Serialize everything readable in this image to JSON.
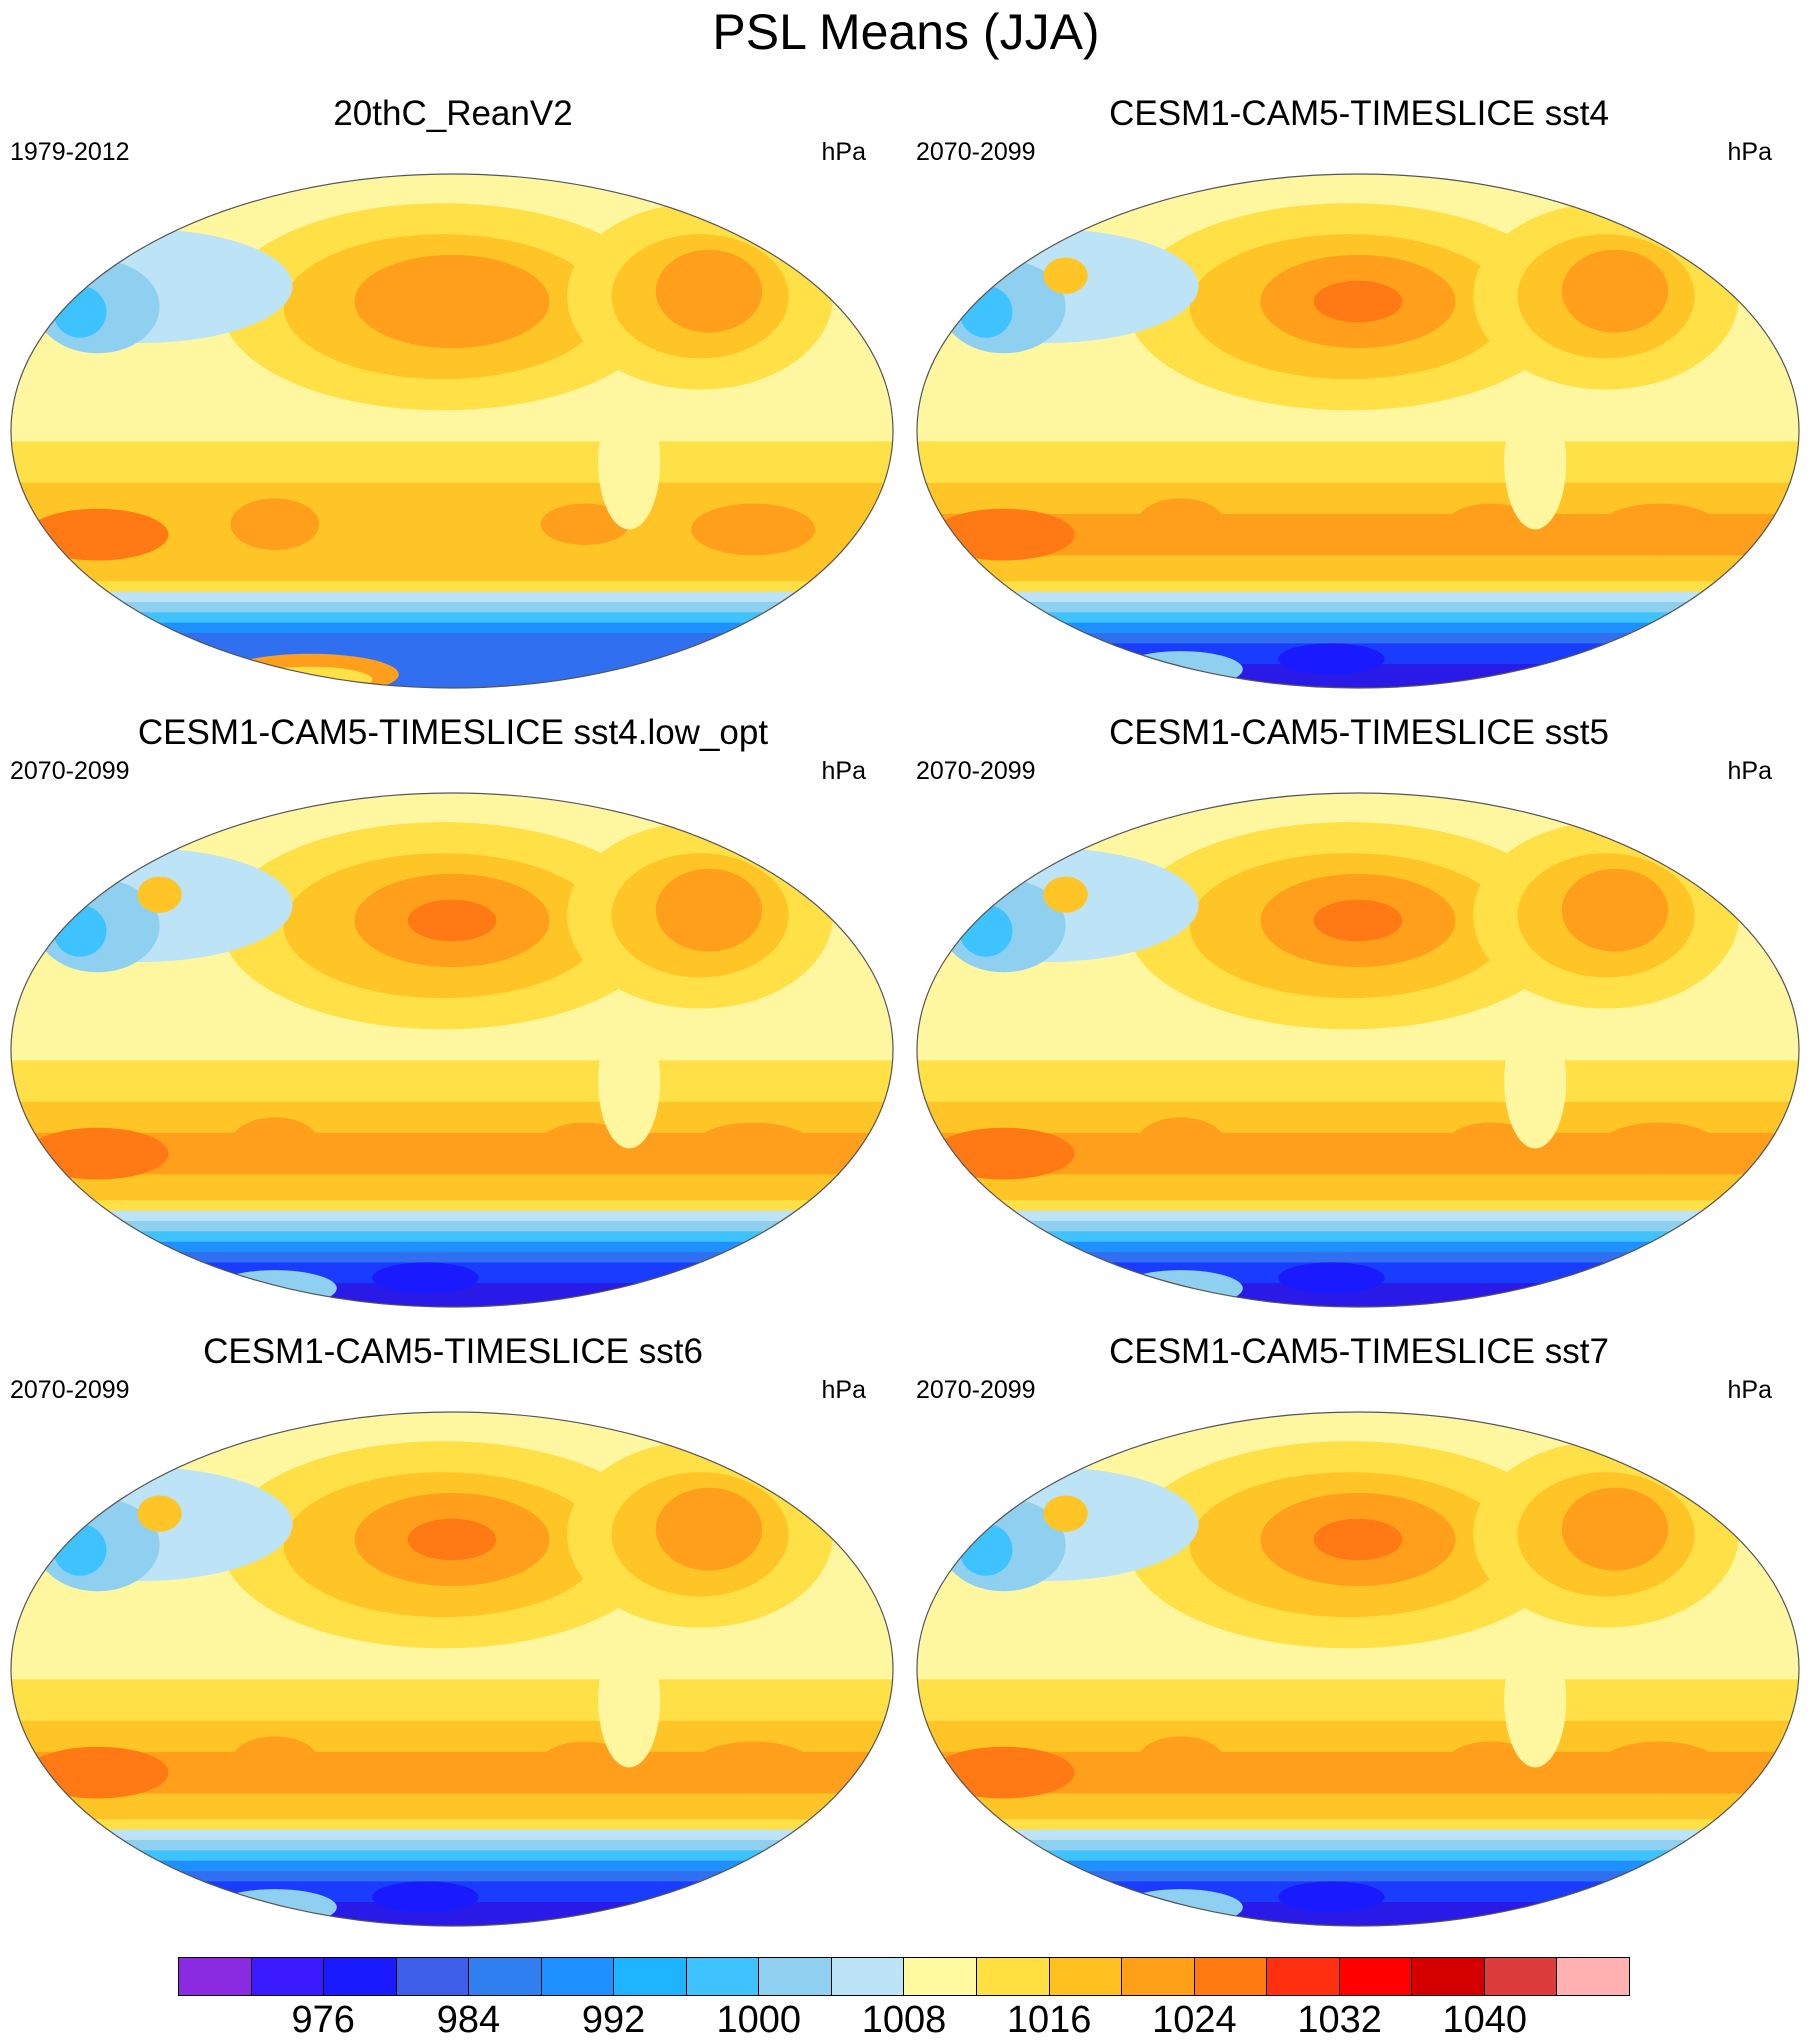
{
  "figure": {
    "title": "PSL Means (JJA)"
  },
  "panels": [
    {
      "title": "20thC_ReanV2",
      "period": "1979-2012",
      "units": "hPa",
      "variant": "obs"
    },
    {
      "title": "CESM1-CAM5-TIMESLICE sst4",
      "period": "2070-2099",
      "units": "hPa",
      "variant": "model"
    },
    {
      "title": "CESM1-CAM5-TIMESLICE sst4.low_opt",
      "period": "2070-2099",
      "units": "hPa",
      "variant": "model"
    },
    {
      "title": "CESM1-CAM5-TIMESLICE sst5",
      "period": "2070-2099",
      "units": "hPa",
      "variant": "model"
    },
    {
      "title": "CESM1-CAM5-TIMESLICE sst6",
      "period": "2070-2099",
      "units": "hPa",
      "variant": "model"
    },
    {
      "title": "CESM1-CAM5-TIMESLICE sst7",
      "period": "2070-2099",
      "units": "hPa",
      "variant": "model"
    }
  ],
  "colorbar": {
    "colors": [
      "#8a2be2",
      "#3b1aff",
      "#1a1aff",
      "#3d5ee8",
      "#2f7ff0",
      "#1e90ff",
      "#1eb4ff",
      "#3fc3ff",
      "#8fd0f0",
      "#bde3f7",
      "#fffaa0",
      "#ffe040",
      "#ffc020",
      "#ffa018",
      "#ff7a10",
      "#ff3010",
      "#ff0000",
      "#d40000",
      "#dc3c3c",
      "#ffb0b0"
    ],
    "tick_labels": [
      "976",
      "984",
      "992",
      "1000",
      "1008",
      "1016",
      "1024",
      "1032",
      "1040"
    ]
  }
}
